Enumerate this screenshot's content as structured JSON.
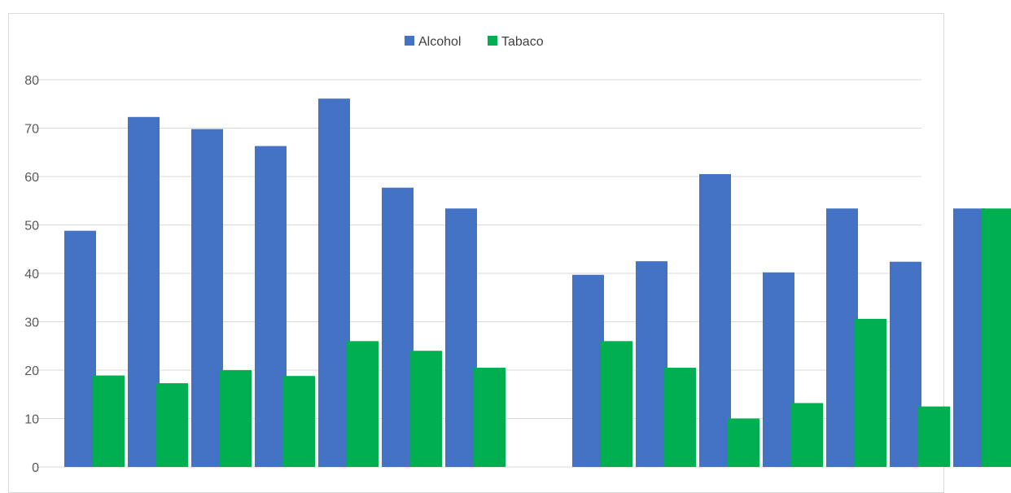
{
  "chart_data": {
    "type": "bar",
    "categories": [
      "",
      "",
      "",
      "",
      "",
      "",
      "",
      "",
      "",
      "",
      "",
      "",
      "",
      "",
      ""
    ],
    "series": [
      {
        "name": "Alcohol",
        "color": "#4472c4",
        "values": [
          48.8,
          72.3,
          69.8,
          66.3,
          76.1,
          57.7,
          53.4,
          null,
          39.7,
          42.5,
          60.5,
          40.2,
          53.4,
          42.4,
          53.4
        ]
      },
      {
        "name": "Tabaco",
        "color": "#00b050",
        "values": [
          18.9,
          17.3,
          20.0,
          18.8,
          26.0,
          24.0,
          20.5,
          null,
          26.0,
          20.5,
          10.0,
          13.2,
          30.6,
          12.5,
          53.4
        ]
      }
    ],
    "ylim": [
      0,
      80
    ],
    "yticks": [
      0,
      10,
      20,
      30,
      40,
      50,
      60,
      70,
      80
    ],
    "grid": true,
    "legend_position": "top-center"
  }
}
